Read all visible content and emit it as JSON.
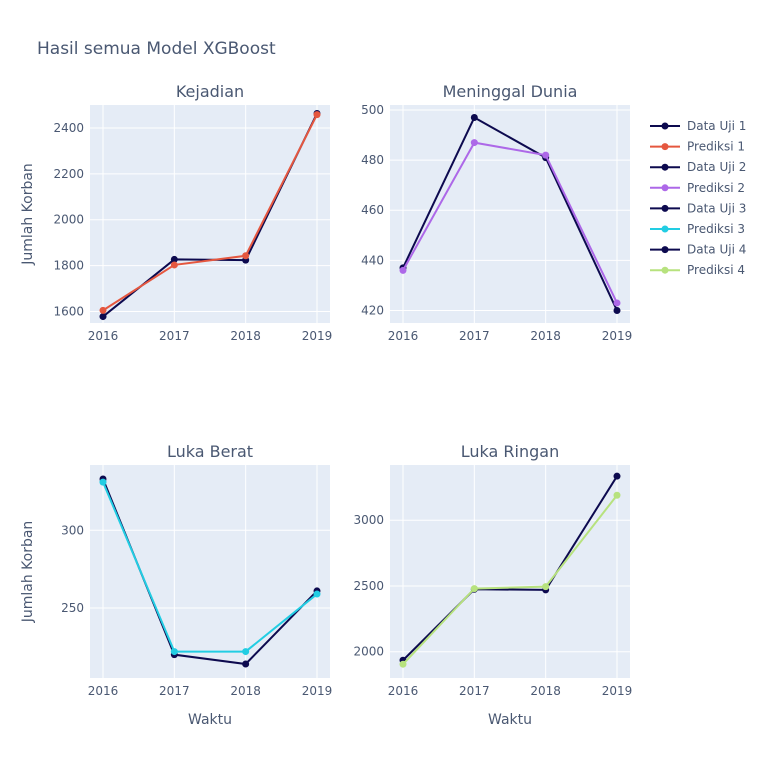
{
  "figure_title": "Hasil semua Model XGBoost",
  "colors": {
    "data": "#0d0a4f",
    "prediksi_1": "#e5573f",
    "prediksi_2": "#ad68e8",
    "prediksi_3": "#22cde3",
    "prediksi_4": "#b7e27e",
    "panel_bg": "#e5ecf6",
    "grid": "#ffffff",
    "text": "#4a5872"
  },
  "legend": {
    "placement": "right",
    "entries": [
      {
        "label": "Data Uji 1",
        "color": "#0d0a4f"
      },
      {
        "label": "Prediksi 1",
        "color": "#e5573f"
      },
      {
        "label": "Data Uji 2",
        "color": "#0d0a4f"
      },
      {
        "label": "Prediksi 2",
        "color": "#ad68e8"
      },
      {
        "label": "Data Uji 3",
        "color": "#0d0a4f"
      },
      {
        "label": "Prediksi 3",
        "color": "#22cde3"
      },
      {
        "label": "Data Uji 4",
        "color": "#0d0a4f"
      },
      {
        "label": "Prediksi 4",
        "color": "#b7e27e"
      }
    ]
  },
  "chart_data": [
    {
      "type": "line",
      "title": "Kejadian",
      "xlabel": "",
      "ylabel": "Jumlah Korban",
      "x": [
        "2016",
        "2017",
        "2018",
        "2019"
      ],
      "yticks": [
        1600,
        1800,
        2000,
        2200,
        2400
      ],
      "ylim": [
        1550,
        2500
      ],
      "grid": true,
      "series": [
        {
          "name": "Data Uji 1",
          "color": "#0d0a4f",
          "values": [
            1578,
            1827,
            1824,
            2463
          ]
        },
        {
          "name": "Prediksi 1",
          "color": "#e5573f",
          "values": [
            1605,
            1803,
            1843,
            2458
          ]
        }
      ]
    },
    {
      "type": "line",
      "title": "Meninggal Dunia",
      "xlabel": "",
      "ylabel": "",
      "x": [
        "2016",
        "2017",
        "2018",
        "2019"
      ],
      "yticks": [
        420,
        440,
        460,
        480,
        500
      ],
      "ylim": [
        415,
        502
      ],
      "grid": true,
      "series": [
        {
          "name": "Data Uji 2",
          "color": "#0d0a4f",
          "values": [
            437,
            497,
            481,
            420
          ]
        },
        {
          "name": "Prediksi 2",
          "color": "#ad68e8",
          "values": [
            436,
            487,
            482,
            423
          ]
        }
      ]
    },
    {
      "type": "line",
      "title": "Luka Berat",
      "xlabel": "Waktu",
      "ylabel": "Jumlah Korban",
      "x": [
        "2016",
        "2017",
        "2018",
        "2019"
      ],
      "yticks": [
        250,
        300
      ],
      "ylim": [
        205,
        342
      ],
      "grid": true,
      "series": [
        {
          "name": "Data Uji 3",
          "color": "#0d0a4f",
          "values": [
            333,
            220,
            214,
            261
          ]
        },
        {
          "name": "Prediksi 3",
          "color": "#22cde3",
          "values": [
            331,
            222,
            222,
            259
          ]
        }
      ]
    },
    {
      "type": "line",
      "title": "Luka Ringan",
      "xlabel": "Waktu",
      "ylabel": "",
      "x": [
        "2016",
        "2017",
        "2018",
        "2019"
      ],
      "yticks": [
        2000,
        2500,
        3000
      ],
      "ylim": [
        1800,
        3420
      ],
      "grid": true,
      "series": [
        {
          "name": "Data Uji 4",
          "color": "#0d0a4f",
          "values": [
            1935,
            2475,
            2470,
            3335
          ]
        },
        {
          "name": "Prediksi 4",
          "color": "#b7e27e",
          "values": [
            1905,
            2480,
            2495,
            3190
          ]
        }
      ]
    }
  ]
}
